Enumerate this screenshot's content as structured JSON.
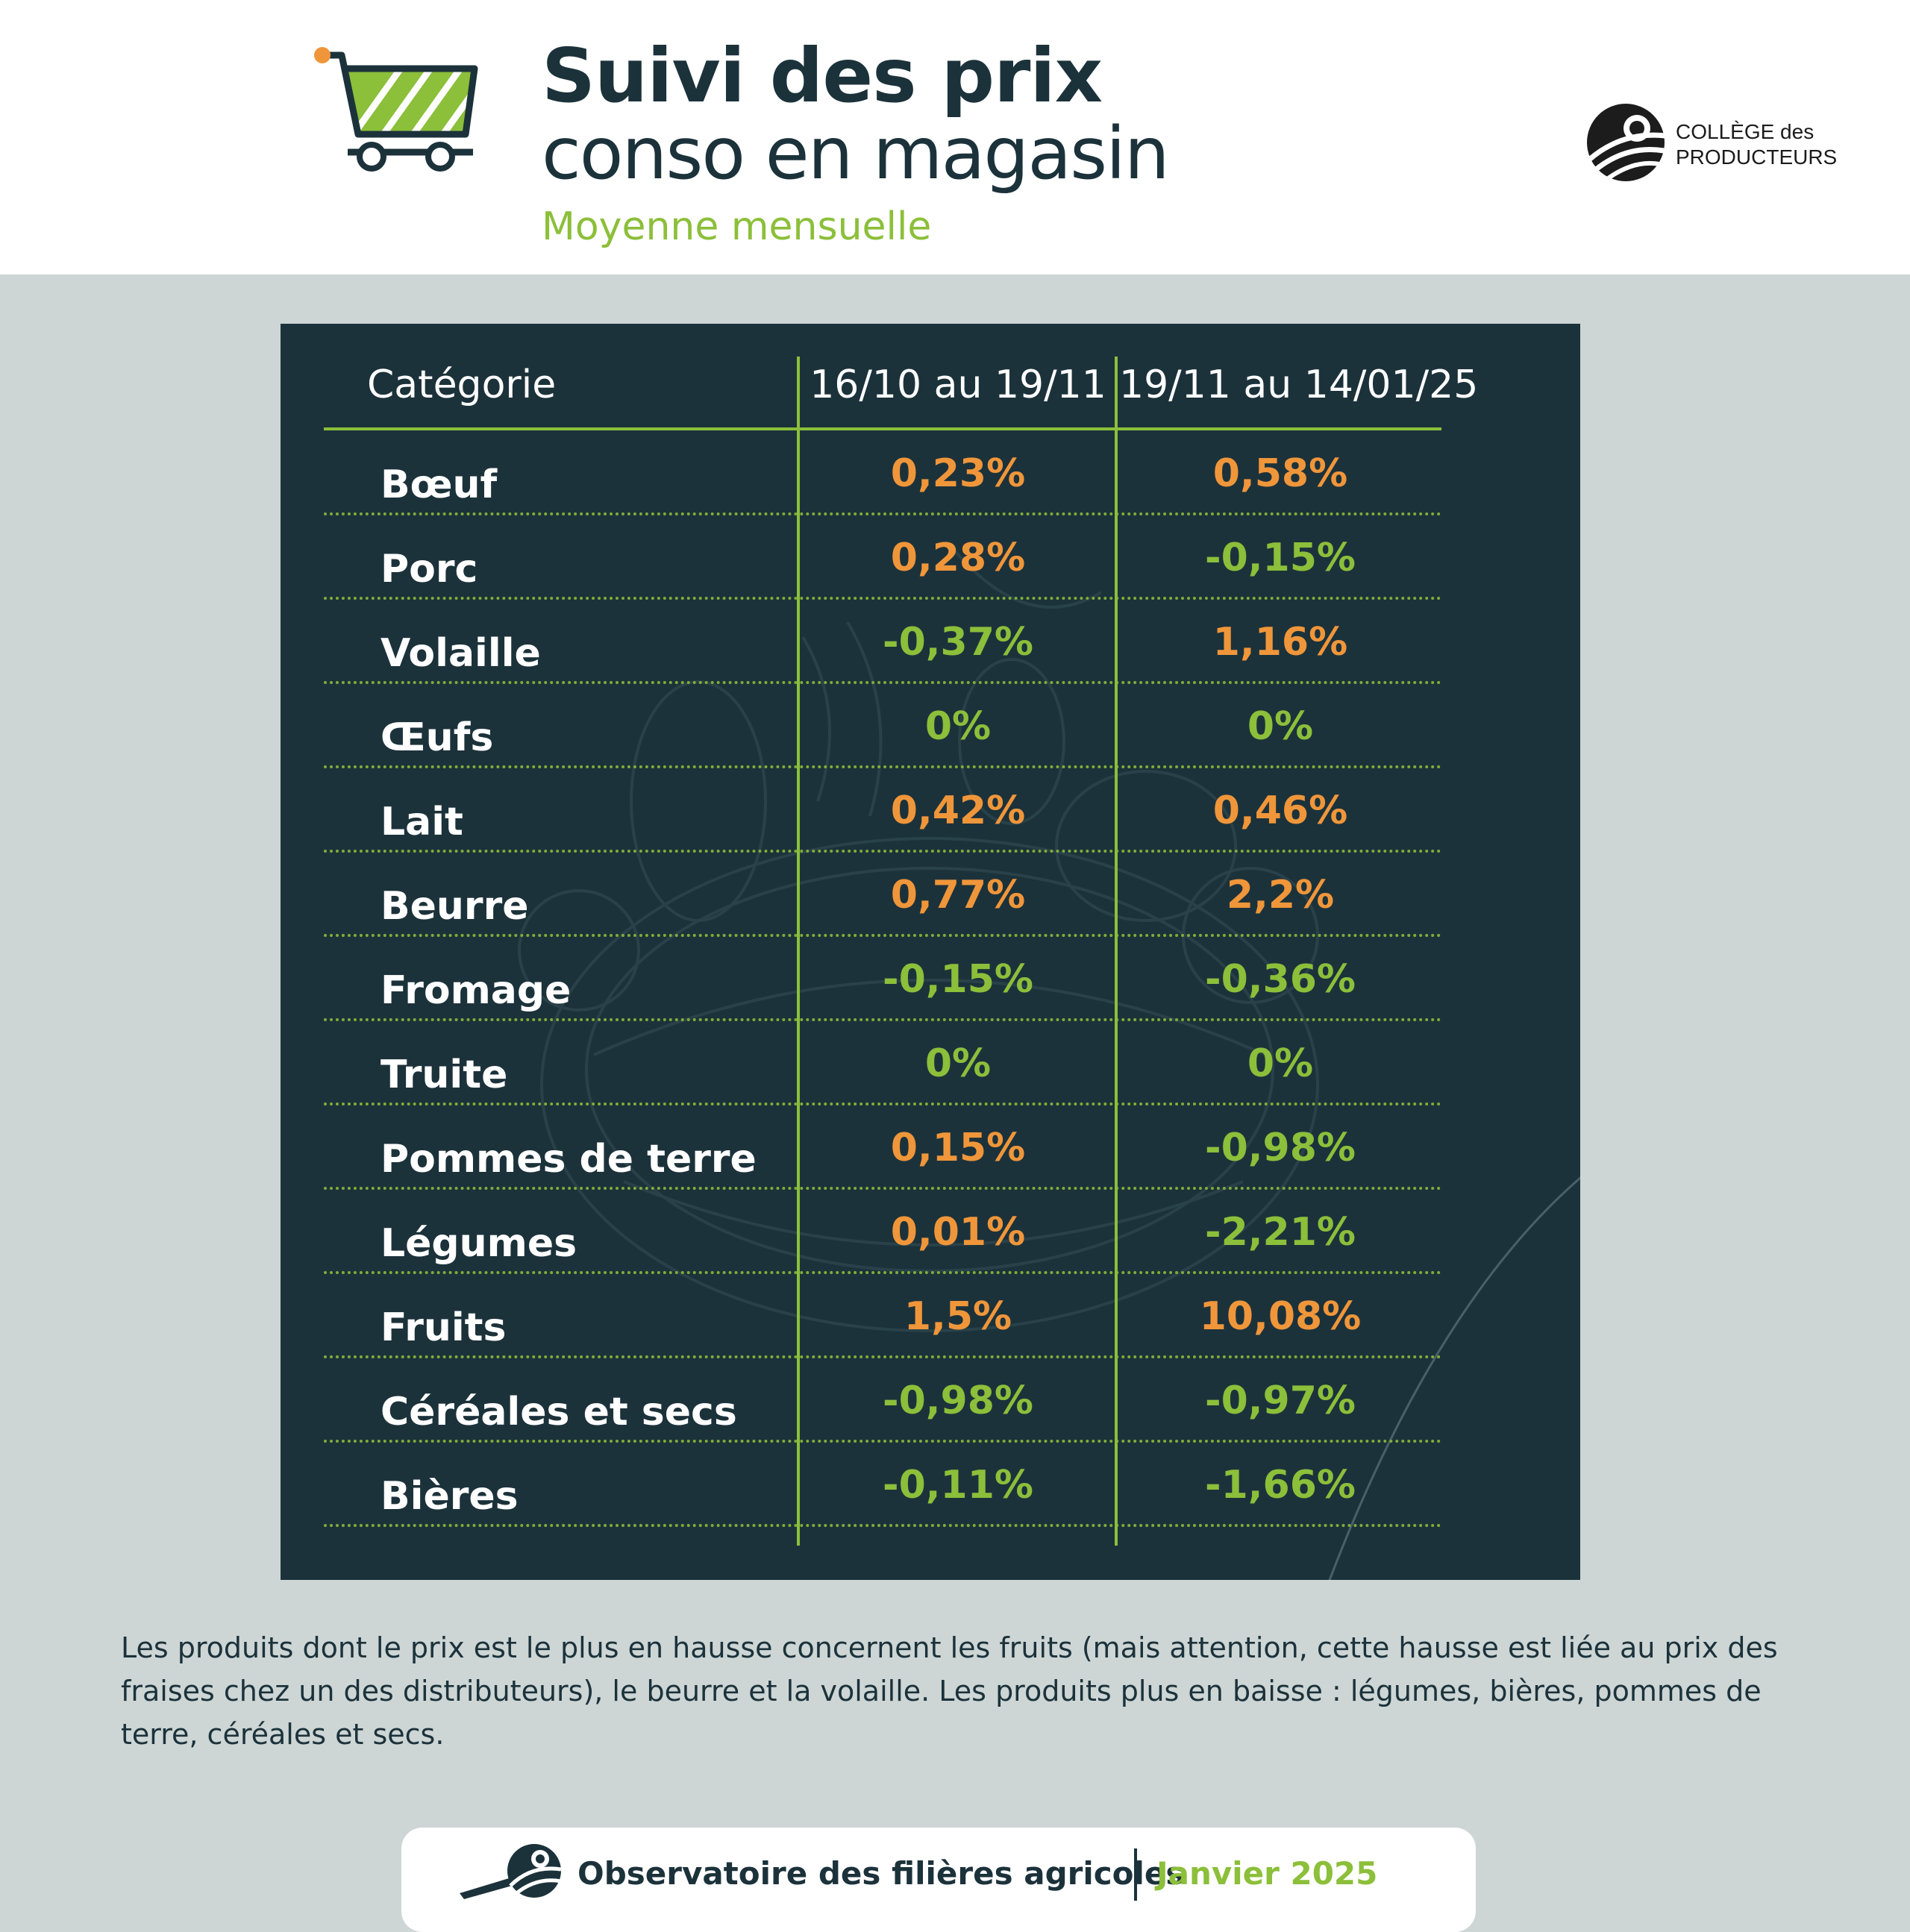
{
  "header": {
    "title": "Suivi des prix",
    "title_line2": "conso en magasin",
    "subtitle": "Moyenne mensuelle",
    "cart_icon": "shopping-cart-icon",
    "logo": {
      "line1": "COLLÈGE des",
      "line2": "PRODUCTEURS"
    }
  },
  "colors": {
    "dark": "#1c323b",
    "green": "#8cbf3a",
    "orange": "#f0963a",
    "background": "#cdd6d5"
  },
  "table": {
    "headers": [
      "Catégorie",
      "16/10 au 19/11",
      "19/11 au 14/01/25"
    ],
    "rows": [
      {
        "category": "Bœuf",
        "period1": "0,23%",
        "period2": "0,58%"
      },
      {
        "category": "Porc",
        "period1": "0,28%",
        "period2": "-0,15%"
      },
      {
        "category": "Volaille",
        "period1": "-0,37%",
        "period2": "1,16%"
      },
      {
        "category": "Œufs",
        "period1": "0%",
        "period2": "0%"
      },
      {
        "category": "Lait",
        "period1": "0,42%",
        "period2": "0,46%"
      },
      {
        "category": "Beurre",
        "period1": "0,77%",
        "period2": "2,2%"
      },
      {
        "category": "Fromage",
        "period1": "-0,15%",
        "period2": "-0,36%"
      },
      {
        "category": "Truite",
        "period1": "0%",
        "period2": "0%"
      },
      {
        "category": "Pommes de terre",
        "period1": "0,15%",
        "period2": "-0,98%"
      },
      {
        "category": "Légumes",
        "period1": "0,01%",
        "period2": "-2,21%"
      },
      {
        "category": "Fruits",
        "period1": "1,5%",
        "period2": "10,08%"
      },
      {
        "category": "Céréales et secs",
        "period1": "-0,98%",
        "period2": "-0,97%"
      },
      {
        "category": "Bières",
        "period1": "-0,11%",
        "period2": "-1,66%"
      }
    ]
  },
  "footnote": "Les produits dont le prix est le plus en hausse concernent les fruits (mais attention, cette hausse est liée au prix des fraises chez un des distributeurs), le beurre et la volaille. Les produits plus en baisse : légumes, bières, pommes de terre, céréales et secs.",
  "footer": {
    "organization": "Observatoire des filières agricoles",
    "date": "Janvier 2025",
    "icon": "tractor-field-icon"
  }
}
